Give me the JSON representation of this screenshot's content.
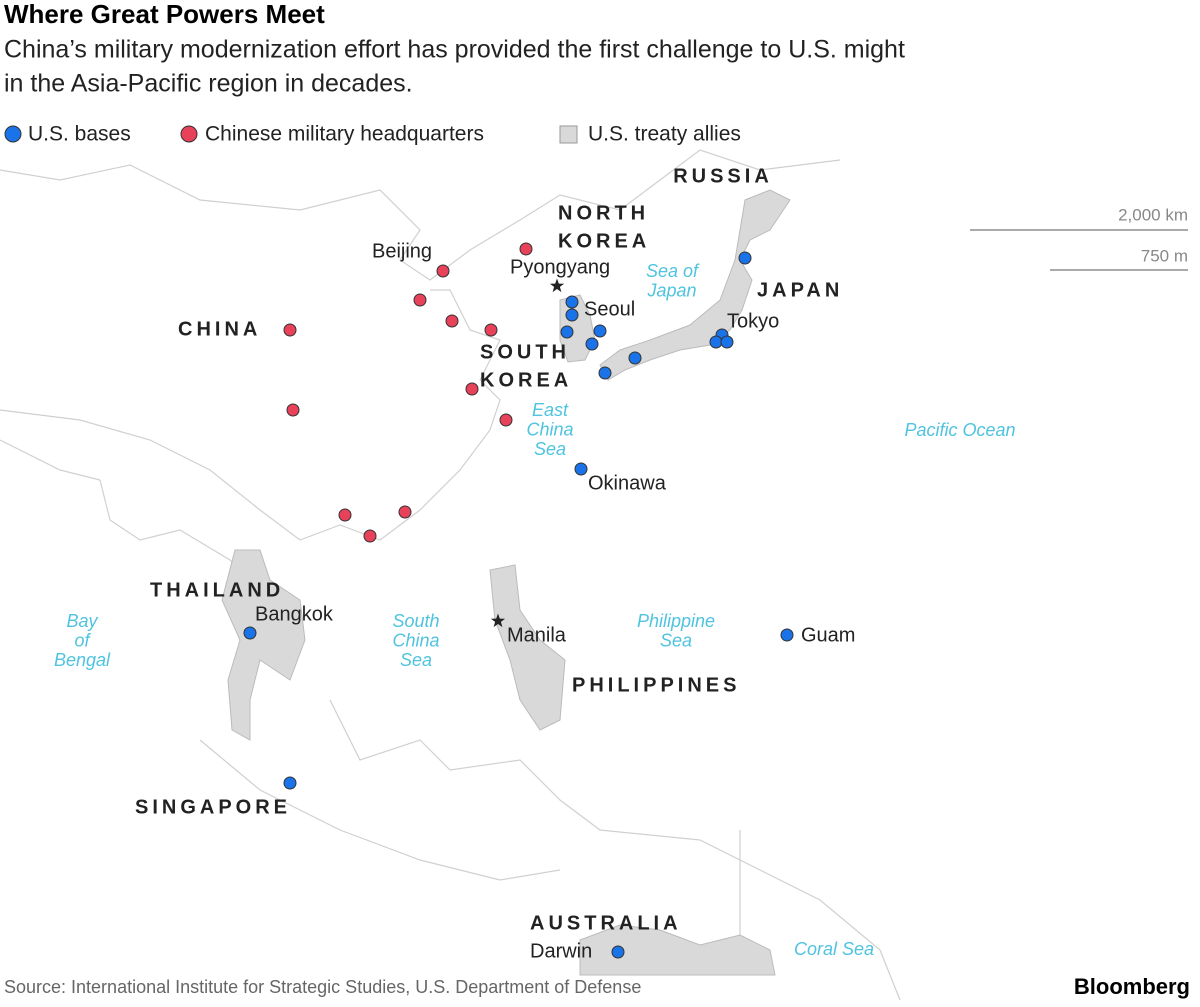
{
  "header": {
    "title": "Where Great Powers Meet",
    "subtitle": [
      "China’s military modernization effort has provided the first challenge to U.S. might",
      "in the Asia-Pacific region in decades."
    ]
  },
  "legend": [
    {
      "label": "U.S. bases",
      "color": "#1a73e8"
    },
    {
      "label": "Chinese military headquarters",
      "color": "#e8415a"
    },
    {
      "label": "U.S. treaty allies",
      "color": "#d9d9d9"
    }
  ],
  "scale": [
    "2,000 km",
    "750 m"
  ],
  "countries": [
    {
      "lines": [
        "RUSSIA"
      ]
    },
    {
      "lines": [
        "NORTH",
        "KOREA"
      ]
    },
    {
      "lines": [
        "JAPAN"
      ]
    },
    {
      "lines": [
        "CHINA"
      ]
    },
    {
      "lines": [
        "SOUTH",
        "KOREA"
      ]
    },
    {
      "lines": [
        "THAILAND"
      ]
    },
    {
      "lines": [
        "PHILIPPINES"
      ]
    },
    {
      "lines": [
        "SINGAPORE"
      ]
    },
    {
      "lines": [
        "AUSTRALIA"
      ]
    }
  ],
  "cities": [
    "Beijing",
    "Pyongyang",
    "Seoul",
    "Tokyo",
    "Okinawa",
    "Bangkok",
    "Manila",
    "Guam",
    "Darwin"
  ],
  "water": [
    {
      "lines": [
        "Sea of",
        "Japan"
      ]
    },
    {
      "lines": [
        "East",
        "China",
        "Sea"
      ]
    },
    {
      "lines": [
        "Pacific Ocean"
      ]
    },
    {
      "lines": [
        "Bay",
        "of",
        "Bengal"
      ]
    },
    {
      "lines": [
        "South",
        "China",
        "Sea"
      ]
    },
    {
      "lines": [
        "Philippine",
        "Sea"
      ]
    },
    {
      "lines": [
        "Coral Sea"
      ]
    }
  ],
  "source": "Source: International Institute for Strategic Studies, U.S. Department of Defense",
  "brand": "Bloomberg"
}
